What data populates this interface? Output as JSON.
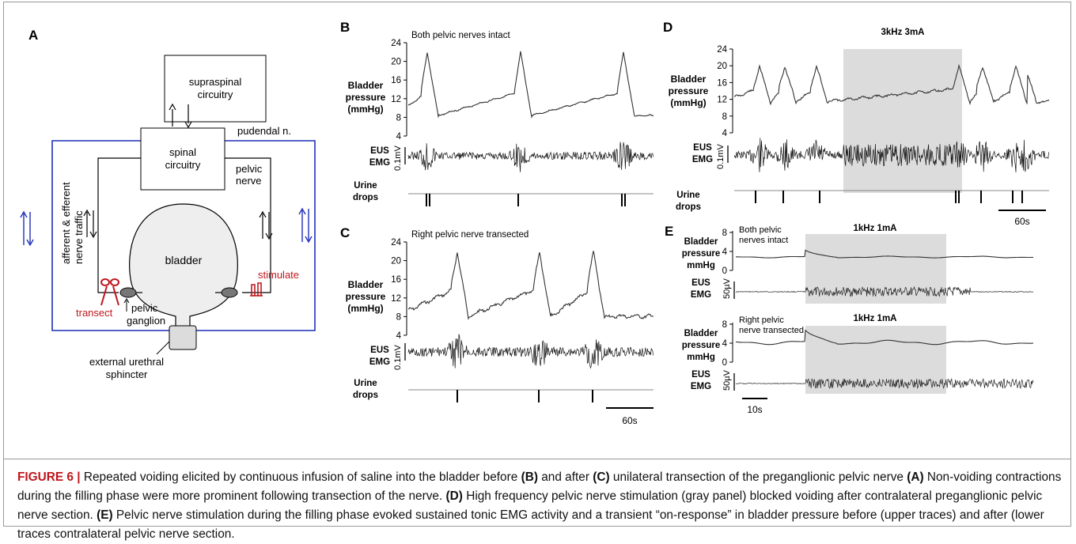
{
  "figure": {
    "panels": {
      "A": {
        "letter": "A",
        "supraspinal": [
          "supraspinal",
          "circuitry"
        ],
        "pudendal": "pudendal n.",
        "spinal": [
          "spinal",
          "circuitry"
        ],
        "pelvic_nerve": [
          "pelvic",
          "nerve"
        ],
        "traffic": [
          "afferent & efferent",
          "nerve traffic"
        ],
        "bladder": "bladder",
        "stimulate": "stimulate",
        "transect": "transect",
        "ganglion": [
          "pelvic",
          "ganglion"
        ],
        "sphincter": [
          "external urethral",
          "sphincter"
        ]
      },
      "B": {
        "letter": "B",
        "title": "Both pelvic nerves intact",
        "ylabel": [
          "Bladder",
          "pressure",
          "(mmHg)"
        ],
        "emg_label": [
          "EUS",
          "EMG"
        ],
        "emg_scale": "0.1mV",
        "urine_label": [
          "Urine",
          "drops"
        ],
        "yticks": [
          "24",
          "20",
          "16",
          "12",
          "8",
          "4"
        ]
      },
      "C": {
        "letter": "C",
        "title": "Right pelvic nerve transected",
        "ylabel": [
          "Bladder",
          "pressure",
          "(mmHg)"
        ],
        "emg_label": [
          "EUS",
          "EMG"
        ],
        "emg_scale": "0.1mV",
        "urine_label": [
          "Urine",
          "drops"
        ],
        "yticks": [
          "24",
          "20",
          "16",
          "12",
          "8",
          "4"
        ],
        "time_scale": "60s"
      },
      "D": {
        "letter": "D",
        "stim_label": "3kHz 3mA",
        "ylabel": [
          "Bladder",
          "pressure",
          "(mmHg)"
        ],
        "emg_label": [
          "EUS",
          "EMG"
        ],
        "emg_scale": "0.1mV",
        "urine_label": [
          "Urine",
          "drops"
        ],
        "yticks": [
          "24",
          "20",
          "16",
          "12",
          "8",
          "4"
        ],
        "time_scale": "60s"
      },
      "E": {
        "letter": "E",
        "upper_note": [
          "Both pelvic",
          "nerves intact"
        ],
        "lower_note": [
          "Right pelvic",
          "nerve transected"
        ],
        "stim_label": "1kHz 1mA",
        "ylabel": [
          "Bladder",
          "pressure",
          "mmHg"
        ],
        "emg_label": [
          "EUS",
          "EMG"
        ],
        "emg_scale": "50µV",
        "yticks": [
          "8",
          "4",
          "0"
        ],
        "time_scale": "10s"
      }
    },
    "caption": {
      "label": "FIGURE 6 |",
      "t1": " Repeated voiding elicited by continuous infusion of saline into the bladder before ",
      "b1": "(B)",
      "t2": " and after ",
      "b2": "(C)",
      "t3": " unilateral transection of the preganglionic pelvic nerve ",
      "b3": "(A)",
      "t4": " Non-voiding contractions during the filling phase were more prominent following transection of the nerve. ",
      "b4": "(D)",
      "t5": " High frequency pelvic nerve stimulation (gray panel) blocked voiding after contralateral preganglionic pelvic nerve section. ",
      "b5": "(E)",
      "t6": " Pelvic nerve stimulation during the filling phase evoked sustained tonic EMG activity and a transient “on-response” in bladder pressure before (upper traces) and after (lower traces contralateral pelvic nerve section."
    }
  }
}
